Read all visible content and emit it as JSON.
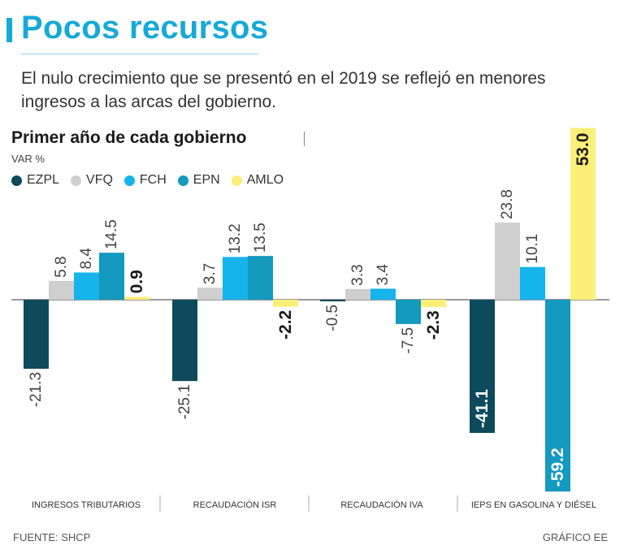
{
  "header": {
    "title": "Pocos recursos",
    "subtitle": "El nulo crecimiento que se presentó en el 2019 se reflejó en menores ingresos a las arcas del gobierno."
  },
  "chart_data": {
    "type": "bar",
    "title": "Primer año de cada gobierno",
    "ylabel": "VAR %",
    "categories": [
      "INGRESOS TRIBUTARIOS",
      "RECAUDACIÓN ISR",
      "RECAUDACIÓN IVA",
      "IEPS EN GASOLINA Y DIÉSEL"
    ],
    "series": [
      {
        "name": "EZPL",
        "color": "#0d4a5c",
        "values": [
          -21.3,
          -25.1,
          -0.5,
          -41.1
        ]
      },
      {
        "name": "VFQ",
        "color": "#cfcfcf",
        "values": [
          5.8,
          3.7,
          3.3,
          23.8
        ]
      },
      {
        "name": "FCH",
        "color": "#15b4ea",
        "values": [
          8.4,
          13.2,
          3.4,
          10.1
        ]
      },
      {
        "name": "EPN",
        "color": "#1499bf",
        "values": [
          14.5,
          13.5,
          -7.5,
          -59.2
        ]
      },
      {
        "name": "AMLO",
        "color": "#fbef7a",
        "values": [
          0.9,
          -2.2,
          -2.3,
          53.0
        ]
      }
    ],
    "labels": [
      [
        "-21.3",
        "-25.1",
        "-0.5",
        "-41.1"
      ],
      [
        "5.8",
        "3.7",
        "3.3",
        "23.8"
      ],
      [
        "8.4",
        "13.2",
        "3.4",
        "10.1"
      ],
      [
        "14.5",
        "13.5",
        "-7.5",
        "-59.2"
      ],
      [
        "0.9",
        "-2.2",
        "-2.3",
        "53.0"
      ]
    ],
    "ylim": [
      -60,
      53
    ],
    "legend": "top-left"
  },
  "footer": {
    "source": "FUENTE: SHCP",
    "credit": "GRÁFICO EE"
  }
}
